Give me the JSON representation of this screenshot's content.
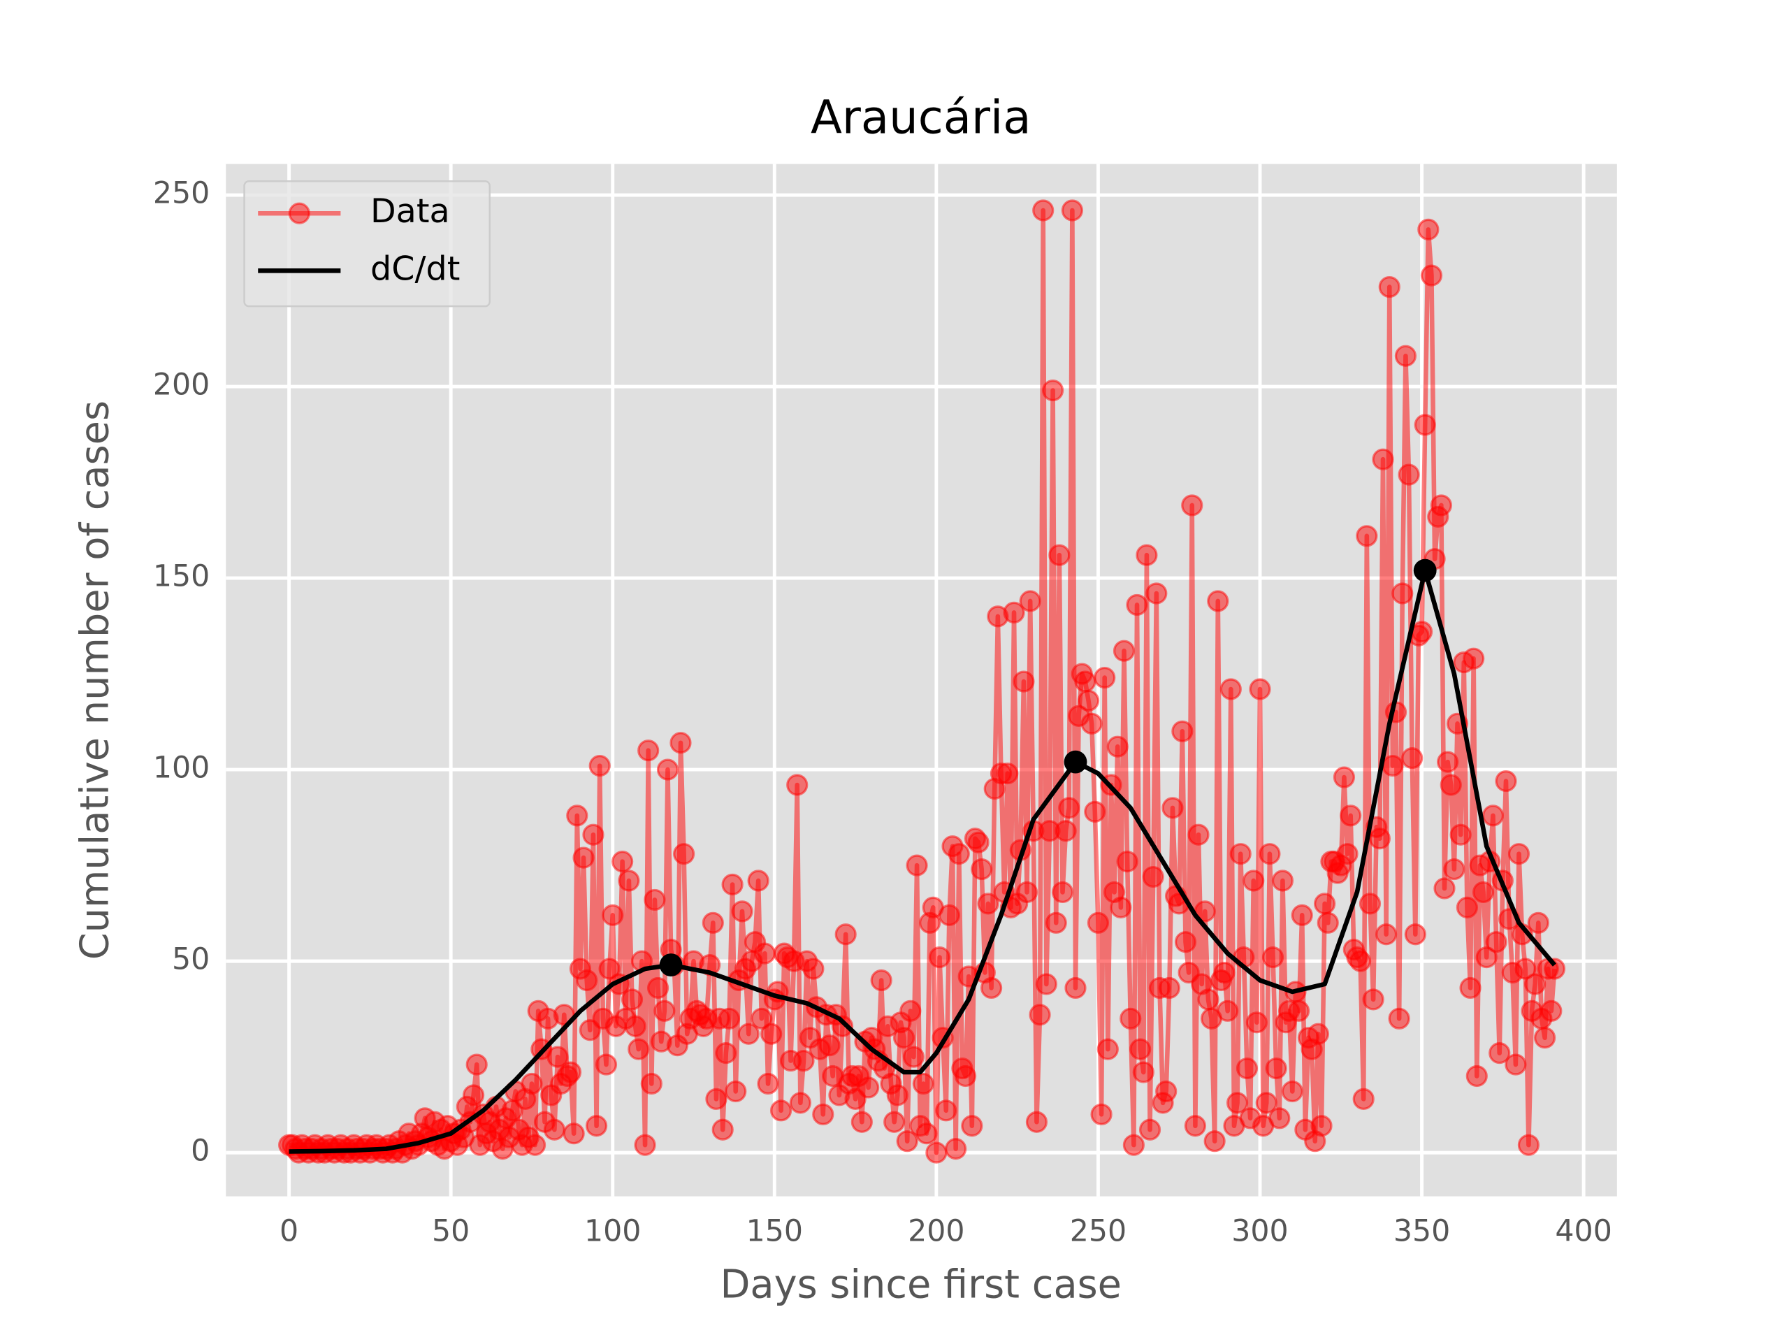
{
  "chart_data": {
    "type": "line",
    "title": "Araucária",
    "xlabel": "Days since first case",
    "ylabel": "Cumulative number of cases",
    "xlim": [
      -19.5,
      410.3
    ],
    "ylim": [
      -11.4,
      258.1
    ],
    "xticks": [
      0,
      50,
      100,
      150,
      200,
      250,
      300,
      350,
      400
    ],
    "yticks": [
      0,
      50,
      100,
      150,
      200,
      250
    ],
    "grid": true,
    "legend": "upper left",
    "series": [
      {
        "name": "Data",
        "color": "#ff0000",
        "x": [
          0,
          1,
          2,
          3,
          4,
          5,
          6,
          7,
          8,
          9,
          10,
          11,
          12,
          13,
          14,
          15,
          16,
          17,
          18,
          19,
          20,
          21,
          22,
          23,
          24,
          25,
          26,
          27,
          28,
          29,
          30,
          31,
          32,
          33,
          34,
          35,
          36,
          37,
          38,
          39,
          40,
          41,
          42,
          43,
          44,
          45,
          46,
          47,
          48,
          49,
          50,
          51,
          52,
          53,
          54,
          55,
          56,
          57,
          58,
          59,
          60,
          61,
          62,
          63,
          64,
          65,
          66,
          67,
          68,
          69,
          70,
          71,
          72,
          73,
          74,
          75,
          76,
          77,
          78,
          79,
          80,
          81,
          82,
          83,
          84,
          85,
          86,
          87,
          88,
          89,
          90,
          91,
          92,
          93,
          94,
          95,
          96,
          97,
          98,
          99,
          100,
          101,
          102,
          103,
          104,
          105,
          106,
          107,
          108,
          109,
          110,
          111,
          112,
          113,
          114,
          115,
          116,
          117,
          118,
          119,
          120,
          121,
          122,
          123,
          124,
          125,
          126,
          127,
          128,
          129,
          130,
          131,
          132,
          133,
          134,
          135,
          136,
          137,
          138,
          139,
          140,
          141,
          142,
          143,
          144,
          145,
          146,
          147,
          148,
          149,
          150,
          151,
          152,
          153,
          154,
          155,
          156,
          157,
          158,
          159,
          160,
          161,
          162,
          163,
          164,
          165,
          166,
          167,
          168,
          169,
          170,
          171,
          172,
          173,
          174,
          175,
          176,
          177,
          178,
          179,
          180,
          181,
          182,
          183,
          184,
          185,
          186,
          187,
          188,
          189,
          190,
          191,
          192,
          193,
          194,
          195,
          196,
          197,
          198,
          199,
          200,
          201,
          202,
          203,
          204,
          205,
          206,
          207,
          208,
          209,
          210,
          211,
          212,
          213,
          214,
          215,
          216,
          217,
          218,
          219,
          220,
          221,
          222,
          223,
          224,
          225,
          226,
          227,
          228,
          229,
          230,
          231,
          232,
          233,
          234,
          235,
          236,
          237,
          238,
          239,
          240,
          241,
          242,
          243,
          244,
          245,
          246,
          247,
          248,
          249,
          250,
          251,
          252,
          253,
          254,
          255,
          256,
          257,
          258,
          259,
          260,
          261,
          262,
          263,
          264,
          265,
          266,
          267,
          268,
          269,
          270,
          271,
          272,
          273,
          274,
          275,
          276,
          277,
          278,
          279,
          280,
          281,
          282,
          283,
          284,
          285,
          286,
          287,
          288,
          289,
          290,
          291,
          292,
          293,
          294,
          295,
          296,
          297,
          298,
          299,
          300,
          301,
          302,
          303,
          304,
          305,
          306,
          307,
          308,
          309,
          310,
          311,
          312,
          313,
          314,
          315,
          316,
          317,
          318,
          319,
          320,
          321,
          322,
          323,
          324,
          325,
          326,
          327,
          328,
          329,
          330,
          331,
          332,
          333,
          334,
          335,
          336,
          337,
          338,
          339,
          340,
          341,
          342,
          343,
          344,
          345,
          346,
          347,
          348,
          349,
          350,
          351,
          352,
          353,
          354,
          355,
          356,
          357,
          358,
          359,
          360,
          361,
          362,
          363,
          364,
          365,
          366,
          367,
          368,
          369,
          370,
          371,
          372,
          373,
          374,
          375,
          376,
          377,
          378,
          379,
          380,
          381,
          382,
          383,
          384,
          385,
          386,
          387,
          388,
          389,
          390,
          391
        ],
        "values": [
          2,
          2,
          1,
          0,
          2,
          1,
          0,
          1,
          2,
          0,
          1,
          0,
          2,
          1,
          0,
          1,
          2,
          0,
          1,
          0,
          2,
          1,
          0,
          1,
          2,
          0,
          1,
          2,
          1,
          0,
          1,
          2,
          0,
          1,
          3,
          0,
          2,
          5,
          1,
          3,
          2,
          5,
          9,
          4,
          3,
          8,
          2,
          6,
          1,
          7,
          3,
          5,
          2,
          6,
          4,
          12,
          8,
          15,
          23,
          2,
          10,
          5,
          8,
          3,
          12,
          6,
          1,
          9,
          4,
          11,
          16,
          6,
          2,
          14,
          4,
          18,
          2,
          37,
          27,
          8,
          35,
          15,
          6,
          25,
          18,
          36,
          20,
          21,
          5,
          88,
          48,
          77,
          45,
          32,
          83,
          7,
          101,
          35,
          23,
          48,
          62,
          33,
          44,
          76,
          35,
          71,
          40,
          33,
          27,
          50,
          2,
          105,
          18,
          66,
          43,
          29,
          37,
          100,
          53,
          49,
          28,
          107,
          78,
          31,
          35,
          50,
          37,
          36,
          33,
          35,
          49,
          60,
          14,
          35,
          6,
          26,
          35,
          70,
          16,
          45,
          63,
          48,
          31,
          50,
          55,
          71,
          35,
          52,
          18,
          31,
          40,
          42,
          11,
          52,
          51,
          24,
          50,
          96,
          13,
          24,
          50,
          30,
          48,
          38,
          27,
          10,
          36,
          28,
          20,
          36,
          15,
          33,
          57,
          18,
          20,
          14,
          20,
          8,
          29,
          17,
          30,
          27,
          24,
          45,
          22,
          33,
          18,
          8,
          15,
          34,
          30,
          3,
          37,
          25,
          75,
          7,
          18,
          5,
          60,
          64,
          0,
          51,
          30,
          11,
          62,
          80,
          1,
          78,
          22,
          20,
          46,
          7,
          82,
          81,
          74,
          47,
          65,
          43,
          95,
          140,
          99,
          68,
          99,
          64,
          141,
          65,
          79,
          123,
          68,
          144,
          84,
          8,
          36,
          246,
          44,
          84,
          199,
          60,
          156,
          68,
          84,
          90,
          246,
          43,
          114,
          125,
          123,
          118,
          112,
          89,
          60,
          10,
          124,
          27,
          96,
          68,
          106,
          64,
          131,
          76,
          35,
          2,
          143,
          27,
          21,
          156,
          6,
          72,
          146,
          43,
          13,
          16,
          43,
          90,
          67,
          65,
          110,
          55,
          47,
          169,
          7,
          83,
          44,
          63,
          40,
          35,
          3,
          144,
          45,
          47,
          37,
          121,
          7,
          13,
          78,
          51,
          22,
          9,
          71,
          34,
          121,
          7,
          13,
          78,
          51,
          22,
          9,
          71,
          34,
          37,
          16,
          42,
          37,
          62,
          6,
          30,
          27,
          3,
          31,
          7,
          65,
          60,
          76,
          76,
          73,
          75,
          98,
          78,
          88,
          53,
          51,
          50,
          14,
          161,
          65,
          40,
          85,
          82,
          181,
          57,
          226,
          101,
          115,
          35,
          146,
          208,
          177,
          103,
          57,
          135,
          136,
          190,
          241,
          229,
          155,
          166,
          169,
          69,
          102,
          96,
          74,
          112,
          83,
          128,
          64,
          43,
          129,
          20,
          75,
          68,
          51,
          76,
          88,
          55,
          26,
          71,
          97,
          61,
          47,
          23,
          78,
          57,
          48,
          2,
          37,
          44,
          60,
          35,
          30,
          48,
          37,
          48
        ]
      },
      {
        "name": "dC/dt",
        "color": "#000000",
        "x": [
          0,
          10,
          20,
          30,
          40,
          50,
          60,
          70,
          80,
          90,
          100,
          110,
          118,
          130,
          140,
          150,
          160,
          170,
          180,
          190,
          195,
          200,
          210,
          220,
          230,
          243,
          250,
          260,
          270,
          280,
          290,
          300,
          310,
          320,
          330,
          340,
          351,
          360,
          370,
          380,
          391
        ],
        "values": [
          0.3,
          0.4,
          0.6,
          1,
          2.5,
          5,
          11,
          19,
          28,
          37,
          44,
          48,
          49,
          47,
          44,
          41,
          39,
          35,
          27,
          21,
          21,
          26,
          40,
          62,
          87,
          102,
          99,
          90,
          76,
          62,
          52,
          45,
          42,
          44,
          68,
          112,
          152,
          125,
          80,
          60,
          49
        ],
        "peaks_x": [
          118,
          243,
          351
        ],
        "peaks_y": [
          49,
          102,
          152
        ]
      }
    ]
  }
}
